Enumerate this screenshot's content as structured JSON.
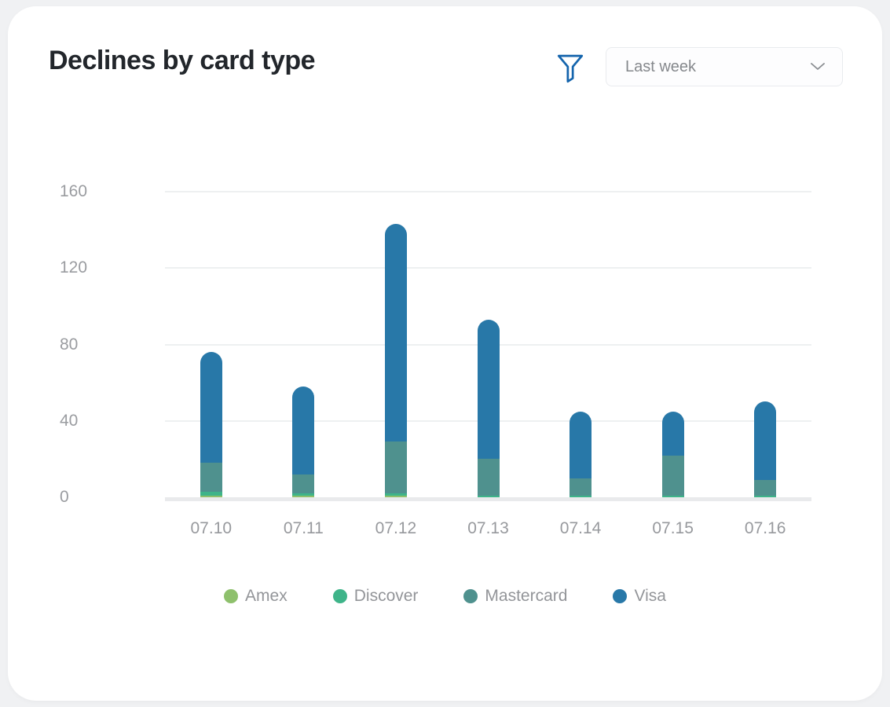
{
  "header": {
    "title": "Declines by card type",
    "filter": {
      "icon": "filter-funnel-icon",
      "color": "#1565ad"
    },
    "range_dropdown": {
      "selected": "Last week",
      "chevron_icon": "chevron-down-icon"
    }
  },
  "colors": {
    "page_bg": "#f0f1f3",
    "card_bg": "#ffffff",
    "grid_line": "#eef0f1",
    "axis_baseline": "#e9eaec",
    "axis_text": "#9a9ca0",
    "title_text": "#22262b",
    "legend_text": "#939599",
    "dropdown_text": "#85888c",
    "dropdown_border": "#e9ebee",
    "filter_icon": "#1565ad"
  },
  "chart_data": {
    "type": "bar",
    "stacked": true,
    "title": "Declines by card type",
    "categories": [
      "07.10",
      "07.11",
      "07.12",
      "07.13",
      "07.14",
      "07.15",
      "07.16"
    ],
    "series": [
      {
        "name": "Amex",
        "color": "#8ec06c",
        "values": [
          1,
          1,
          1,
          0,
          0,
          0,
          0
        ]
      },
      {
        "name": "Discover",
        "color": "#3eb489",
        "values": [
          2,
          1,
          1,
          1,
          1,
          1,
          1
        ]
      },
      {
        "name": "Mastercard",
        "color": "#4f918e",
        "values": [
          15,
          10,
          27,
          19,
          9,
          21,
          8
        ]
      },
      {
        "name": "Visa",
        "color": "#2878a8",
        "values": [
          58,
          46,
          114,
          73,
          35,
          23,
          41
        ]
      }
    ],
    "totals": [
      76,
      58,
      143,
      93,
      45,
      45,
      50
    ],
    "y_ticks": [
      0,
      40,
      80,
      120,
      160
    ],
    "ylim": [
      0,
      160
    ],
    "xlabel": "",
    "ylabel": "",
    "grid": true,
    "legend_position": "bottom"
  }
}
